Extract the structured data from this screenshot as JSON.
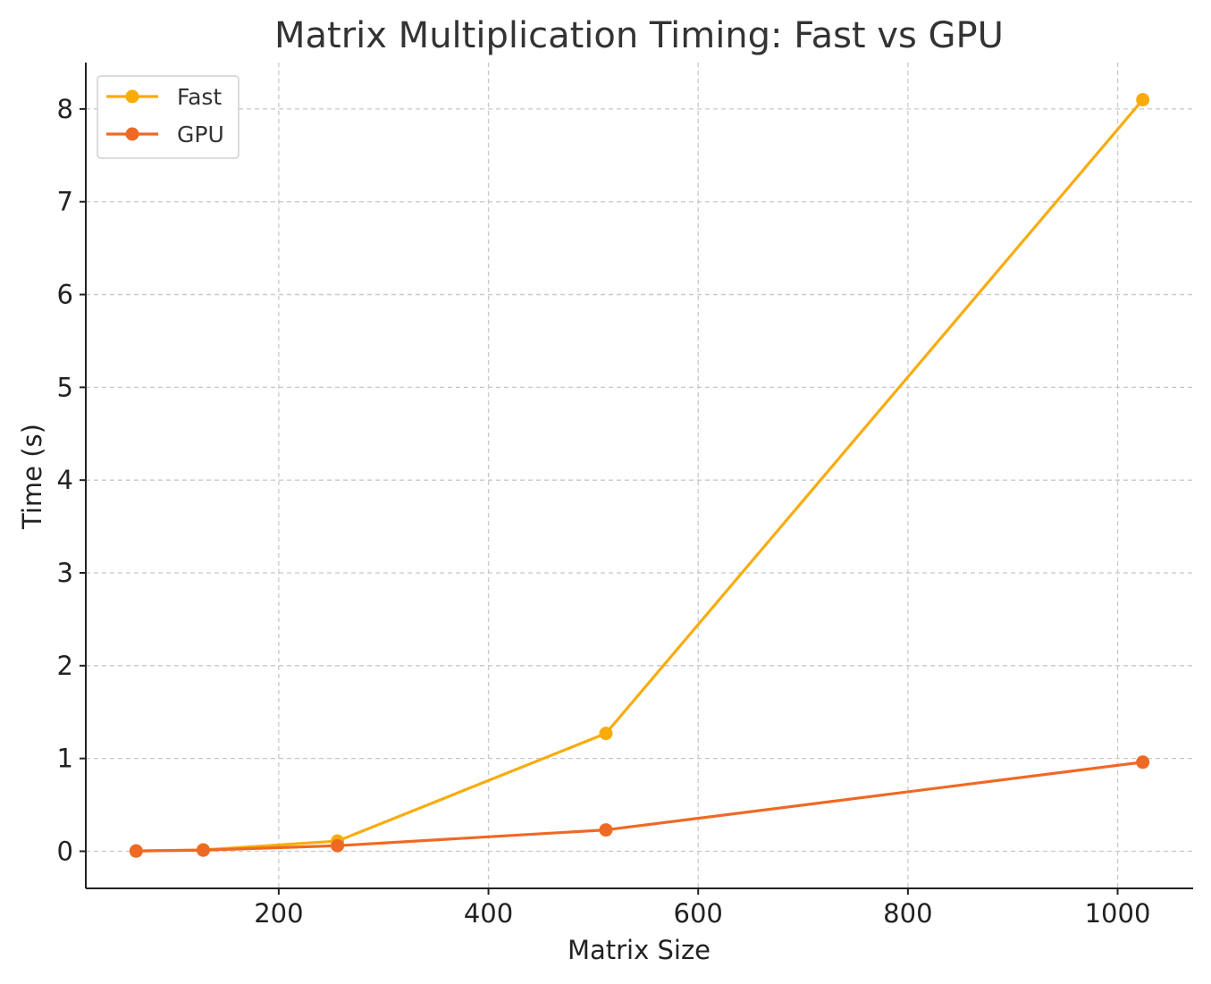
{
  "chart_data": {
    "type": "line",
    "title": "Matrix Multiplication Timing: Fast vs GPU",
    "xlabel": "Matrix Size",
    "ylabel": "Time (s)",
    "xlim": [
      16,
      1072
    ],
    "ylim": [
      -0.4,
      8.5
    ],
    "xticks": [
      200,
      400,
      600,
      800,
      1000
    ],
    "yticks": [
      0,
      1,
      2,
      3,
      4,
      5,
      6,
      7,
      8
    ],
    "grid": true,
    "legend_position": "top-left",
    "x": [
      64,
      128,
      256,
      512,
      1024
    ],
    "series": [
      {
        "name": "Fast",
        "color": "#F8AC0C",
        "values": [
          0.002,
          0.015,
          0.11,
          1.27,
          8.1
        ]
      },
      {
        "name": "GPU",
        "color": "#EE6A24",
        "values": [
          0.003,
          0.012,
          0.06,
          0.23,
          0.96
        ]
      }
    ]
  }
}
